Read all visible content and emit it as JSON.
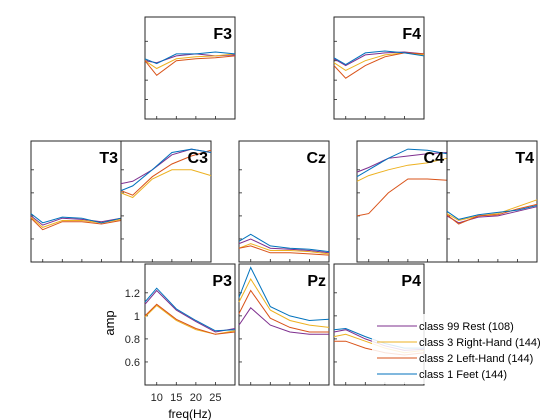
{
  "chart_data": {
    "type": "line",
    "xlabel": "freq(Hz)",
    "ylabel": "amp",
    "x_ticks": [
      10,
      15,
      20,
      25
    ],
    "y_ticks": [
      0.6,
      0.8,
      1,
      1.2
    ],
    "x": [
      7,
      10,
      15,
      20,
      25,
      30
    ],
    "xlim": [
      7,
      30
    ],
    "ylim": [
      0.4,
      1.45
    ],
    "legend_location": "bottom-right",
    "series": [
      {
        "name": "class 99 Rest (108)",
        "color": "#7E2F8E"
      },
      {
        "name": "class 3 Right-Hand  (144)",
        "color": "#EDB120"
      },
      {
        "name": "class 2 Left-Hand  (144)",
        "color": "#D95319"
      },
      {
        "name": "class 1 Feet  (144)",
        "color": "#0072BD"
      }
    ],
    "panels": [
      {
        "id": "f3",
        "title": "F3",
        "values": [
          [
            1.0,
            0.98,
            1.05,
            1.07,
            1.05,
            1.06
          ],
          [
            1.0,
            0.92,
            1.02,
            1.04,
            1.05,
            1.07
          ],
          [
            1.0,
            0.85,
            1.0,
            1.02,
            1.03,
            1.05
          ],
          [
            1.02,
            0.97,
            1.07,
            1.07,
            1.09,
            1.07
          ]
        ]
      },
      {
        "id": "f4",
        "title": "F4",
        "values": [
          [
            1.02,
            0.95,
            1.06,
            1.08,
            1.09,
            1.07
          ],
          [
            0.98,
            0.9,
            1.0,
            1.06,
            1.08,
            1.06
          ],
          [
            0.95,
            0.82,
            0.95,
            1.04,
            1.08,
            1.07
          ],
          [
            1.03,
            0.96,
            1.08,
            1.1,
            1.08,
            1.05
          ]
        ]
      },
      {
        "id": "t3",
        "title": "T3",
        "values": [
          [
            0.8,
            0.72,
            0.78,
            0.77,
            0.75,
            0.78
          ],
          [
            0.79,
            0.7,
            0.76,
            0.76,
            0.74,
            0.77
          ],
          [
            0.78,
            0.68,
            0.75,
            0.75,
            0.73,
            0.76
          ],
          [
            0.82,
            0.74,
            0.79,
            0.78,
            0.74,
            0.78
          ]
        ]
      },
      {
        "id": "c3",
        "title": "C3",
        "values": [
          [
            1.08,
            1.1,
            1.2,
            1.33,
            1.38,
            1.35
          ],
          [
            1.0,
            0.96,
            1.12,
            1.2,
            1.2,
            1.15
          ],
          [
            1.02,
            0.98,
            1.14,
            1.25,
            1.32,
            1.37
          ],
          [
            1.02,
            1.06,
            1.2,
            1.35,
            1.38,
            1.35
          ]
        ]
      },
      {
        "id": "cz",
        "title": "Cz",
        "values": [
          [
            0.56,
            0.6,
            0.52,
            0.51,
            0.5,
            0.48
          ],
          [
            0.52,
            0.56,
            0.5,
            0.5,
            0.49,
            0.47
          ],
          [
            0.52,
            0.54,
            0.48,
            0.48,
            0.47,
            0.46
          ],
          [
            0.58,
            0.64,
            0.54,
            0.52,
            0.51,
            0.49
          ]
        ]
      },
      {
        "id": "c4",
        "title": "C4",
        "values": [
          [
            1.18,
            1.22,
            1.3,
            1.32,
            1.34,
            1.35
          ],
          [
            1.1,
            1.15,
            1.2,
            1.24,
            1.26,
            1.3
          ],
          [
            0.8,
            0.82,
            1.0,
            1.12,
            1.12,
            1.11
          ],
          [
            1.14,
            1.2,
            1.3,
            1.38,
            1.37,
            1.34
          ]
        ]
      },
      {
        "id": "t4",
        "title": "T4",
        "values": [
          [
            0.8,
            0.74,
            0.79,
            0.8,
            0.84,
            0.88
          ],
          [
            0.82,
            0.76,
            0.8,
            0.82,
            0.88,
            0.94
          ],
          [
            0.81,
            0.73,
            0.8,
            0.81,
            0.86,
            0.9
          ],
          [
            0.84,
            0.77,
            0.81,
            0.83,
            0.85,
            0.89
          ]
        ]
      },
      {
        "id": "p3",
        "title": "P3",
        "values": [
          [
            1.1,
            1.22,
            1.05,
            0.95,
            0.86,
            0.89
          ],
          [
            0.99,
            1.09,
            0.96,
            0.88,
            0.84,
            0.87
          ],
          [
            1.0,
            1.1,
            0.97,
            0.89,
            0.84,
            0.86
          ],
          [
            1.12,
            1.24,
            1.06,
            0.96,
            0.87,
            0.88
          ]
        ]
      },
      {
        "id": "pz",
        "title": "Pz",
        "values": [
          [
            0.92,
            1.07,
            0.92,
            0.86,
            0.84,
            0.84
          ],
          [
            1.12,
            1.32,
            1.05,
            0.96,
            0.92,
            0.9
          ],
          [
            1.02,
            1.22,
            0.98,
            0.9,
            0.86,
            0.86
          ],
          [
            1.16,
            1.42,
            1.08,
            1.0,
            0.96,
            0.97
          ]
        ]
      },
      {
        "id": "p4",
        "title": "P4",
        "values": [
          [
            0.86,
            0.88,
            0.8,
            0.74,
            0.7,
            0.71
          ],
          [
            0.82,
            0.84,
            0.78,
            0.72,
            0.68,
            0.7
          ],
          [
            0.78,
            0.78,
            0.72,
            0.68,
            0.66,
            0.68
          ],
          [
            0.88,
            0.89,
            0.82,
            0.76,
            0.72,
            0.72
          ]
        ]
      }
    ]
  }
}
